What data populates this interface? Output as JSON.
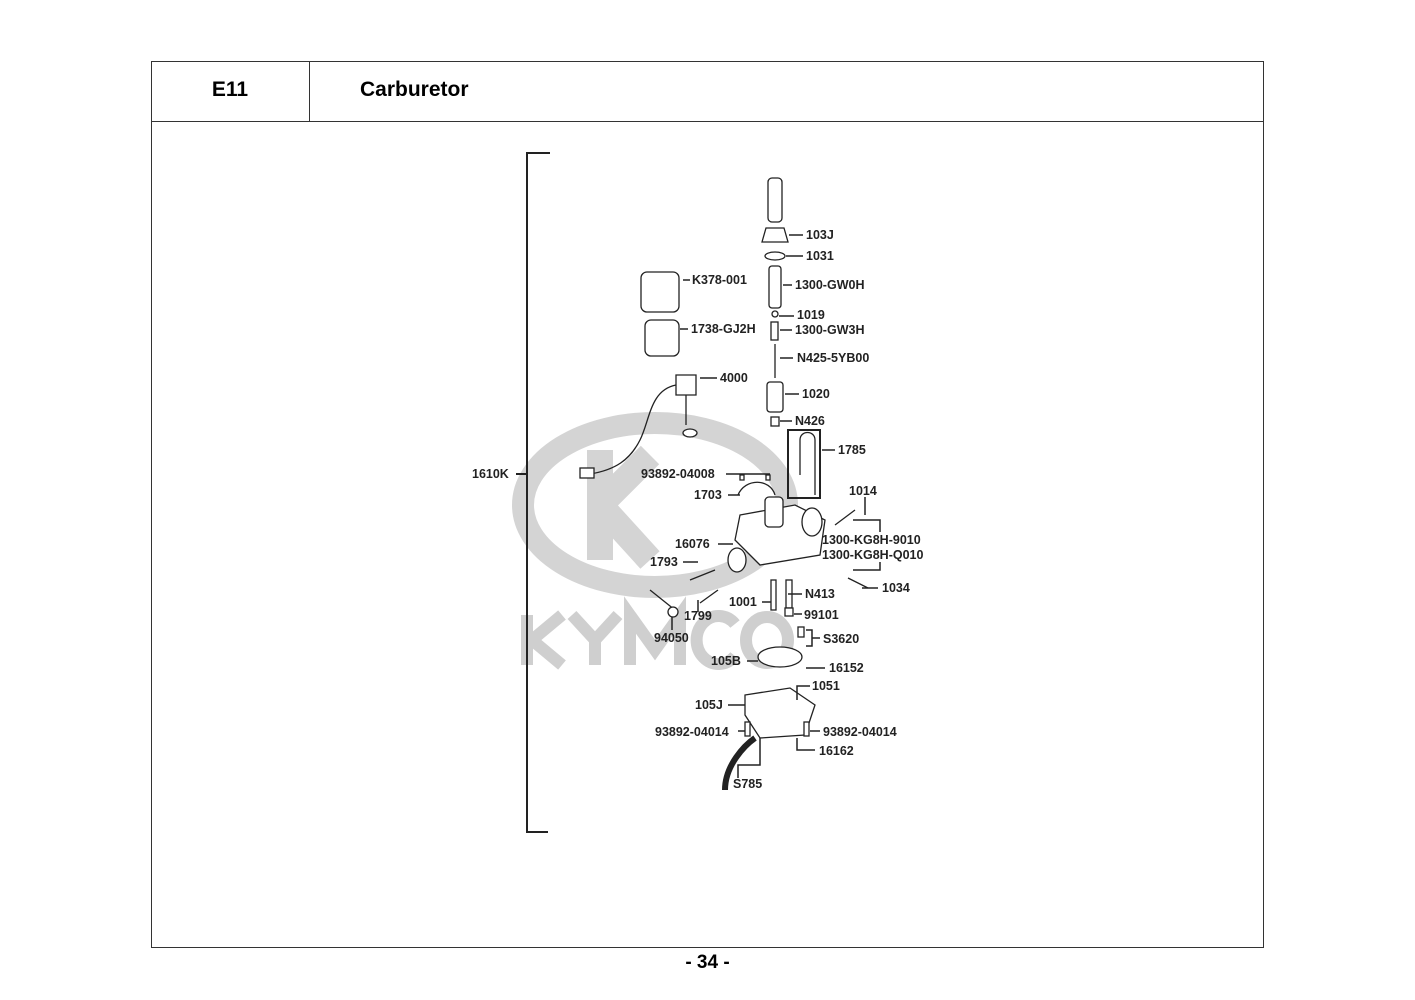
{
  "header": {
    "section_code": "E11",
    "title": "Carburetor"
  },
  "watermark": {
    "brand": "KYMCO"
  },
  "assembly_label": "1610K",
  "parts": [
    {
      "id": "103J"
    },
    {
      "id": "1031"
    },
    {
      "id": "1300-GW0H"
    },
    {
      "id": "K378-001"
    },
    {
      "id": "1019"
    },
    {
      "id": "1738-GJ2H"
    },
    {
      "id": "1300-GW3H"
    },
    {
      "id": "N425-5YB00"
    },
    {
      "id": "4000"
    },
    {
      "id": "1020"
    },
    {
      "id": "N426"
    },
    {
      "id": "1785"
    },
    {
      "id": "93892-04008"
    },
    {
      "id": "1703"
    },
    {
      "id": "1014"
    },
    {
      "id": "1300-KG8H-9010"
    },
    {
      "id": "16076"
    },
    {
      "id": "1300-KG8H-Q010"
    },
    {
      "id": "1793"
    },
    {
      "id": "1034"
    },
    {
      "id": "N413"
    },
    {
      "id": "1001"
    },
    {
      "id": "99101"
    },
    {
      "id": "1799"
    },
    {
      "id": "94050"
    },
    {
      "id": "S3620"
    },
    {
      "id": "105B"
    },
    {
      "id": "16152"
    },
    {
      "id": "1051"
    },
    {
      "id": "105J"
    },
    {
      "id": "93892-04014"
    },
    {
      "id": "93892-04014"
    },
    {
      "id": "16162"
    },
    {
      "id": "S785"
    }
  ],
  "footer": {
    "page_number": "- 34 -"
  }
}
